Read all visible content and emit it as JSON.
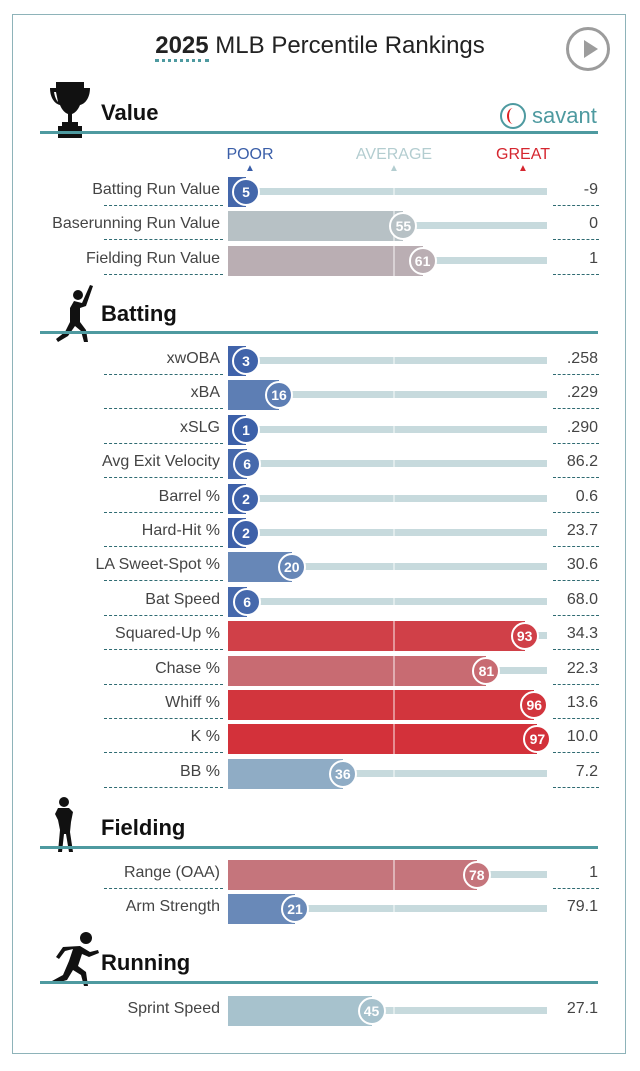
{
  "title": {
    "year": "2025",
    "rest": "MLB Percentile Rankings"
  },
  "brand": "savant",
  "scale": {
    "poor": "POOR",
    "average": "AVERAGE",
    "great": "GREAT"
  },
  "colors": {
    "accent": "#4e9aa0",
    "poor": "#3a5ea8",
    "great": "#d5262f"
  },
  "sections": [
    {
      "name": "Value",
      "icon": "trophy-icon",
      "rows": [
        {
          "label": "Batting Run Value",
          "pct": 5,
          "value": "-9"
        },
        {
          "label": "Baserunning Run Value",
          "pct": 55,
          "value": "0"
        },
        {
          "label": "Fielding Run Value",
          "pct": 61,
          "value": "1"
        }
      ]
    },
    {
      "name": "Batting",
      "icon": "batter-icon",
      "rows": [
        {
          "label": "xwOBA",
          "pct": 3,
          "value": ".258"
        },
        {
          "label": "xBA",
          "pct": 16,
          "value": ".229"
        },
        {
          "label": "xSLG",
          "pct": 1,
          "value": ".290"
        },
        {
          "label": "Avg Exit Velocity",
          "pct": 6,
          "value": "86.2"
        },
        {
          "label": "Barrel %",
          "pct": 2,
          "value": "0.6"
        },
        {
          "label": "Hard-Hit %",
          "pct": 2,
          "value": "23.7"
        },
        {
          "label": "LA Sweet-Spot %",
          "pct": 20,
          "value": "30.6"
        },
        {
          "label": "Bat Speed",
          "pct": 6,
          "value": "68.0"
        },
        {
          "label": "Squared-Up %",
          "pct": 93,
          "value": "34.3"
        },
        {
          "label": "Chase %",
          "pct": 81,
          "value": "22.3"
        },
        {
          "label": "Whiff %",
          "pct": 96,
          "value": "13.6"
        },
        {
          "label": "K %",
          "pct": 97,
          "value": "10.0"
        },
        {
          "label": "BB %",
          "pct": 36,
          "value": "7.2"
        }
      ]
    },
    {
      "name": "Fielding",
      "icon": "fielder-icon",
      "rows": [
        {
          "label": "Range (OAA)",
          "pct": 78,
          "value": "1"
        },
        {
          "label": "Arm Strength",
          "pct": 21,
          "value": "79.1"
        }
      ]
    },
    {
      "name": "Running",
      "icon": "runner-icon",
      "rows": [
        {
          "label": "Sprint Speed",
          "pct": 45,
          "value": "27.1"
        }
      ]
    }
  ]
}
